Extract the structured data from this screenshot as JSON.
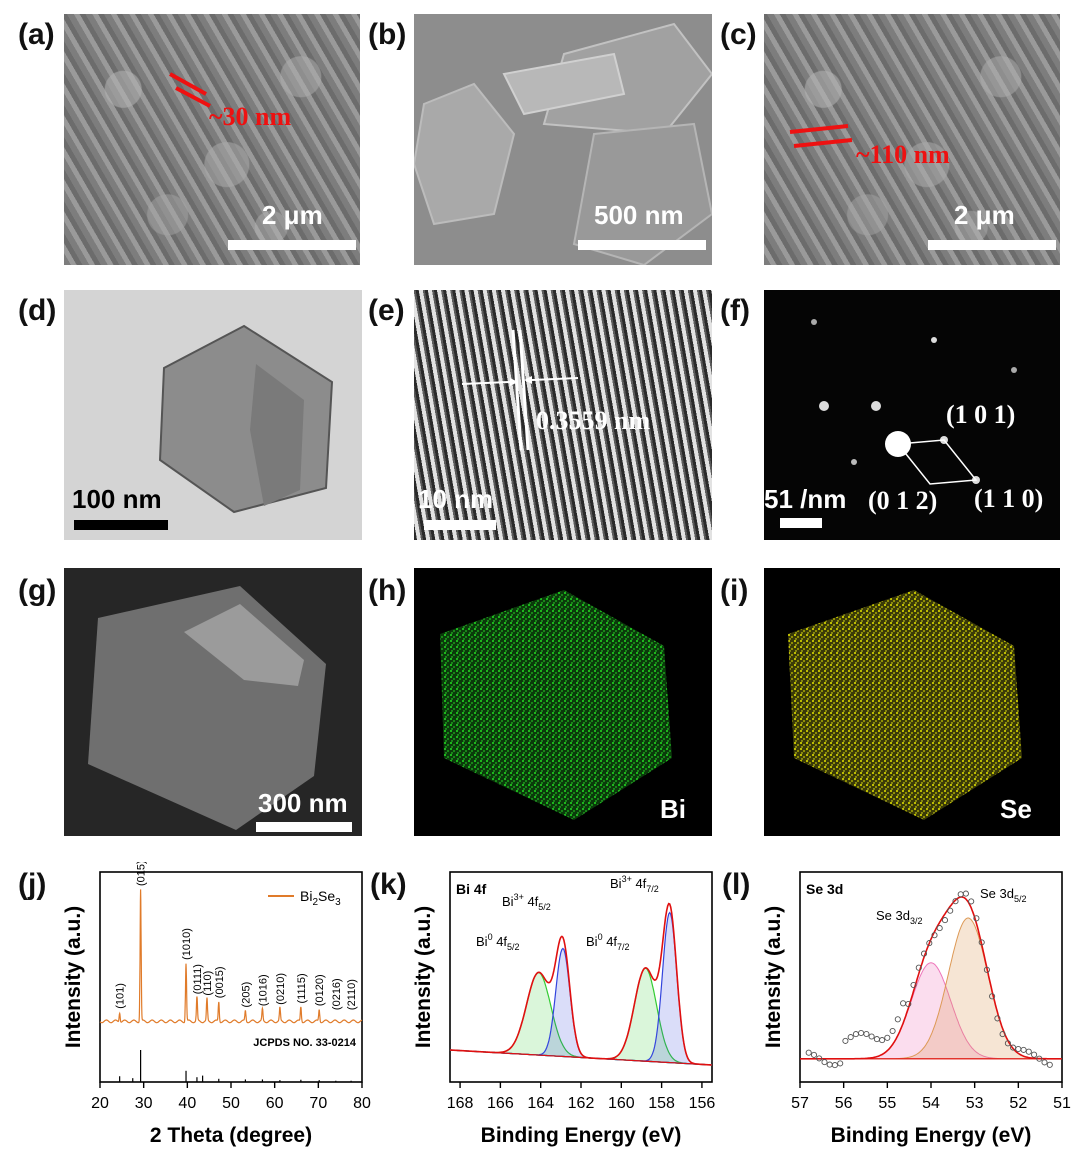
{
  "panels": {
    "a": {
      "letter": "(a)",
      "scale": "2 μm",
      "annotation": "~30 nm"
    },
    "b": {
      "letter": "(b)",
      "scale": "500 nm"
    },
    "c": {
      "letter": "(c)",
      "scale": "2 μm",
      "annotation": "~110 nm"
    },
    "d": {
      "letter": "(d)",
      "scale": "100 nm"
    },
    "e": {
      "letter": "(e)",
      "scale": "10 nm",
      "annotation": "0.3559 nm"
    },
    "f": {
      "letter": "(f)",
      "scale": "51 /nm",
      "spot_101": "(1 0 1)",
      "spot_012": "(0 1 2)",
      "spot_110": "(1 1 0)"
    },
    "g": {
      "letter": "(g)",
      "scale": "300 nm"
    },
    "h": {
      "letter": "(h)",
      "element": "Bi",
      "color": "#22dd22"
    },
    "i": {
      "letter": "(i)",
      "element": "Se",
      "color": "#e6e600"
    },
    "j": {
      "letter": "(j)"
    },
    "k": {
      "letter": "(k)"
    },
    "l": {
      "letter": "(l)"
    }
  },
  "chart_data": [
    {
      "type": "line",
      "panel": "j",
      "xlabel": "2 Theta (degree)",
      "ylabel": "Intensity (a.u.)",
      "xlim": [
        20,
        80
      ],
      "xticks": [
        20,
        30,
        40,
        50,
        60,
        70,
        80
      ],
      "legend": {
        "label": "Bi2Se3",
        "position": "top-right",
        "color": "#e07b2a"
      },
      "reference_label": "JCPDS NO. 33-0214",
      "series": [
        {
          "name": "Bi2Se3",
          "color": "#e07b2a",
          "x": [
            20,
            23.5,
            24.5,
            25.5,
            27.5,
            28.2,
            29.3,
            30.5,
            35,
            39.2,
            39.7,
            40.4,
            42.2,
            43.5,
            44.5,
            47.2,
            48.5,
            51,
            53.3,
            55,
            57.2,
            58.5,
            60,
            61.2,
            63,
            66,
            68.5,
            70.2,
            72.5,
            74,
            76,
            77.5,
            80
          ],
          "y": [
            0.02,
            0.02,
            0.07,
            0.02,
            0.04,
            0.05,
            1.0,
            0.05,
            0.03,
            0.02,
            0.44,
            0.03,
            0.18,
            0.03,
            0.17,
            0.15,
            0.03,
            0.03,
            0.08,
            0.03,
            0.09,
            0.03,
            0.04,
            0.1,
            0.03,
            0.11,
            0.04,
            0.09,
            0.03,
            0.06,
            0.03,
            0.06,
            0.03
          ]
        }
      ],
      "reference_x": [
        24.5,
        27.5,
        29.3,
        39.7,
        42.2,
        43.5,
        47.2,
        53.3,
        57.2,
        61.2,
        66,
        70.2,
        74,
        77.5
      ],
      "reference_h": [
        0.18,
        0.12,
        1.0,
        0.35,
        0.15,
        0.2,
        0.1,
        0.08,
        0.08,
        0.06,
        0.07,
        0.06,
        0.04,
        0.04
      ],
      "peak_labels": [
        {
          "x": 24.5,
          "label": "(101)"
        },
        {
          "x": 29.3,
          "label": "(015)"
        },
        {
          "x": 39.7,
          "label": "(1010)"
        },
        {
          "x": 42.2,
          "label": "(0111)"
        },
        {
          "x": 44.5,
          "label": "(110)"
        },
        {
          "x": 47.2,
          "label": "(0015)"
        },
        {
          "x": 53.3,
          "label": "(205)"
        },
        {
          "x": 57.2,
          "label": "(1016)"
        },
        {
          "x": 61.2,
          "label": "(0210)"
        },
        {
          "x": 66,
          "label": "(1115)"
        },
        {
          "x": 70.2,
          "label": "(0120)"
        },
        {
          "x": 74,
          "label": "(0216)"
        },
        {
          "x": 77.5,
          "label": "(2110)"
        }
      ]
    },
    {
      "type": "area",
      "panel": "k",
      "title": "Bi 4f",
      "xlabel": "Binding Energy (eV)",
      "ylabel": "Intensity (a.u.)",
      "xlim": [
        168.5,
        155.5
      ],
      "xticks": [
        168,
        166,
        164,
        162,
        160,
        158,
        156
      ],
      "peaks": [
        {
          "label": "Bi0 4f5/2",
          "center": 164.1,
          "height": 0.55,
          "width": 0.6,
          "color": "#33cc33"
        },
        {
          "label": "Bi3+ 4f5/2",
          "center": 162.9,
          "height": 0.72,
          "width": 0.35,
          "color": "#3344dd"
        },
        {
          "label": "Bi0 4f7/2",
          "center": 158.8,
          "height": 0.62,
          "width": 0.55,
          "color": "#33cc33"
        },
        {
          "label": "Bi3+ 4f7/2",
          "center": 157.6,
          "height": 1.0,
          "width": 0.35,
          "color": "#3344dd"
        }
      ],
      "annotations": [
        {
          "base": "Bi",
          "sup": "0",
          "text": " 4f",
          "sub": "5/2"
        },
        {
          "base": "Bi",
          "sup": "3+",
          "text": " 4f",
          "sub": "5/2"
        },
        {
          "base": "Bi",
          "sup": "0",
          "text": " 4f",
          "sub": "7/2"
        },
        {
          "base": "Bi",
          "sup": "3+",
          "text": " 4f",
          "sub": "7/2"
        }
      ]
    },
    {
      "type": "area",
      "panel": "l",
      "title": "Se 3d",
      "xlabel": "Binding Energy (eV)",
      "ylabel": "Intensity (a.u.)",
      "xlim": [
        57,
        51
      ],
      "xticks": [
        57,
        56,
        55,
        54,
        53,
        52,
        51
      ],
      "peaks": [
        {
          "label": "Se 3d3/2",
          "center": 54.0,
          "height": 0.6,
          "width": 0.45,
          "color": "#ee77bb"
        },
        {
          "label": "Se 3d5/2",
          "center": 53.15,
          "height": 0.88,
          "width": 0.45,
          "color": "#dd9955"
        }
      ],
      "annotations": [
        {
          "base": "Se 3d",
          "sub": "3/2"
        },
        {
          "base": "Se 3d",
          "sub": "5/2"
        }
      ]
    }
  ]
}
